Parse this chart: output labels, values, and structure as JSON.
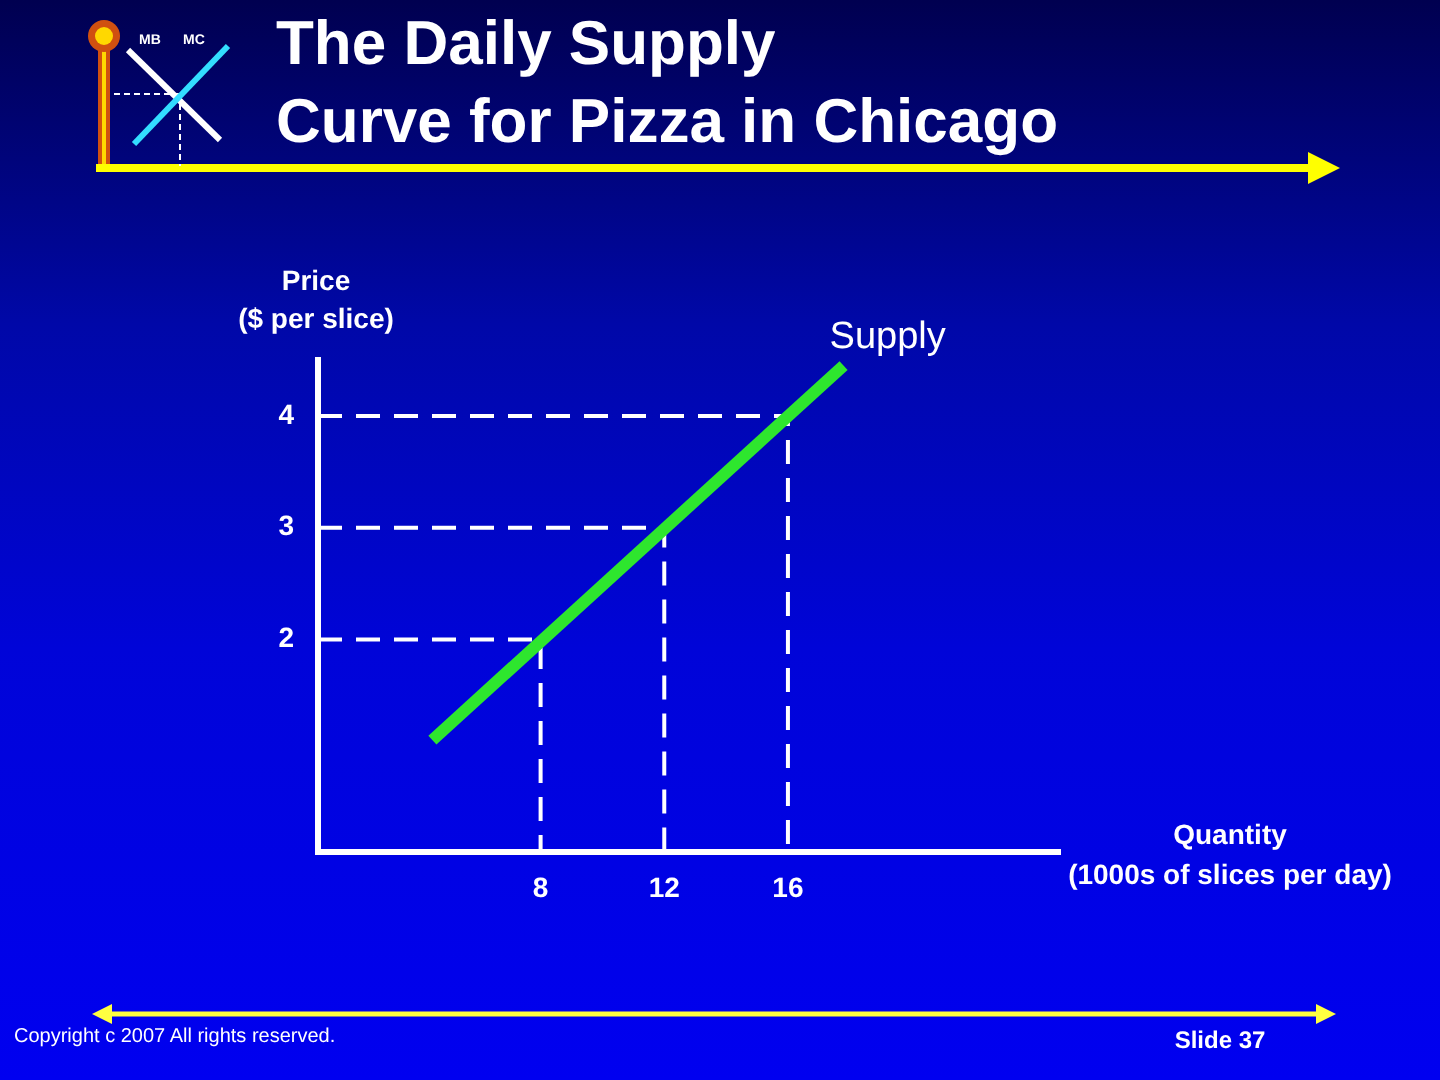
{
  "chart_data": {
    "type": "line",
    "title": "The Daily Supply\nCurve for Pizza in Chicago",
    "xlabel": "Quantity\n(1000s of slices per day)",
    "ylabel": "Price\n($ per slice)",
    "annotations": [
      "MB",
      "MC",
      "Copyright c 2007 All rights reserved.",
      "Slide 37"
    ],
    "series": [
      {
        "name": "Supply",
        "color": "#2ee62e",
        "x": [
          4.5,
          17.8
        ],
        "values": [
          1.1,
          4.45
        ]
      },
      {
        "color": "#ffffff",
        "x": [
          0.8,
          8,
          8
        ],
        "values": [
          2,
          2,
          0.1
        ],
        "line_style": "dashed"
      },
      {
        "color": "#ffffff",
        "x": [
          0.8,
          12,
          12
        ],
        "values": [
          3,
          3,
          0.1
        ],
        "line_style": "dashed"
      },
      {
        "color": "#ffffff",
        "x": [
          0.8,
          16,
          16
        ],
        "values": [
          4,
          4,
          0.1
        ],
        "line_style": "dashed"
      }
    ],
    "xlim": [
      0.8,
      24.8
    ],
    "ylim": [
      0.1,
      4.5
    ],
    "xticks": [
      8,
      12,
      16
    ],
    "yticks": [
      2,
      3,
      4
    ],
    "marker": "none",
    "line_style": "solid"
  }
}
